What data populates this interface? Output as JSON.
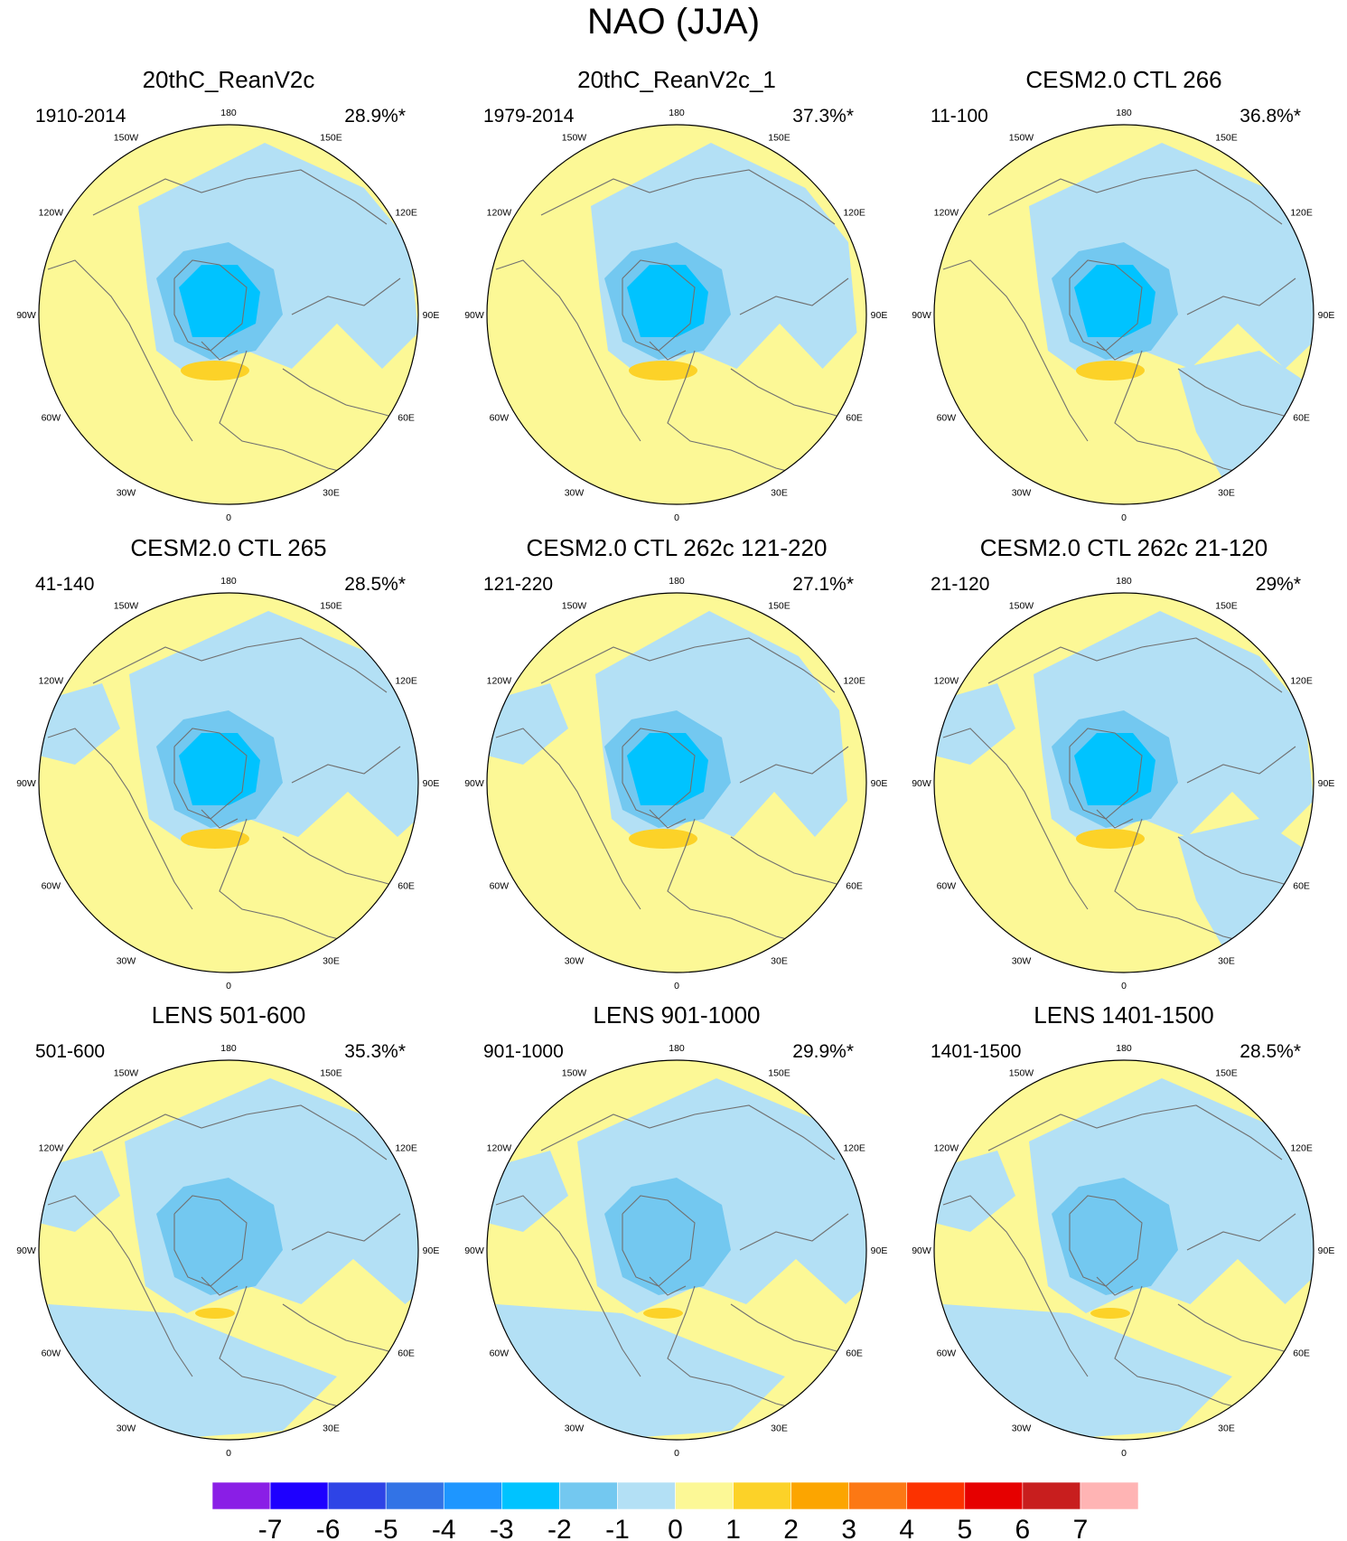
{
  "title": "NAO (JJA)",
  "panels": [
    {
      "title": "20thC_ReanV2c",
      "period": "1910-2014",
      "variance": "28.9%*"
    },
    {
      "title": "20thC_ReanV2c_1",
      "period": "1979-2014",
      "variance": "37.3%*"
    },
    {
      "title": "CESM2.0 CTL 266",
      "period": "11-100",
      "variance": "36.8%*"
    },
    {
      "title": "CESM2.0 CTL 265",
      "period": "41-140",
      "variance": "28.5%*"
    },
    {
      "title": "CESM2.0 CTL 262c 121-220",
      "period": "121-220",
      "variance": "27.1%*"
    },
    {
      "title": "CESM2.0 CTL 262c 21-120",
      "period": "21-120",
      "variance": "29%*"
    },
    {
      "title": "LENS 501-600",
      "period": "501-600",
      "variance": "35.3%*"
    },
    {
      "title": "LENS 901-1000",
      "period": "901-1000",
      "variance": "29.9%*"
    },
    {
      "title": "LENS 1401-1500",
      "period": "1401-1500",
      "variance": "28.5%*"
    }
  ],
  "longitude_labels": [
    "180",
    "150E",
    "120E",
    "90E",
    "60E",
    "30E",
    "0",
    "30W",
    "60W",
    "90W",
    "120W",
    "150W"
  ],
  "colorbar": {
    "ticks": [
      "-7",
      "-6",
      "-5",
      "-4",
      "-3",
      "-2",
      "-1",
      "0",
      "1",
      "2",
      "3",
      "4",
      "5",
      "6",
      "7"
    ],
    "colors": [
      "#8a1ee6",
      "#1e00ff",
      "#2e44e6",
      "#3273e6",
      "#1e96ff",
      "#00c3ff",
      "#73c8f0",
      "#b3e0f5",
      "#fcf896",
      "#fcd228",
      "#fca500",
      "#fc7814",
      "#fc3200",
      "#e60000",
      "#c81e1e",
      "#ffb4b4"
    ]
  },
  "colors": {
    "ocean_pos_0_1": "#fcf896",
    "neg_0_1": "#b3e0f5",
    "neg_1_2": "#73c8f0",
    "neg_2_3": "#00c3ff",
    "pos_1_2": "#fcd228",
    "coastline": "#707070"
  }
}
